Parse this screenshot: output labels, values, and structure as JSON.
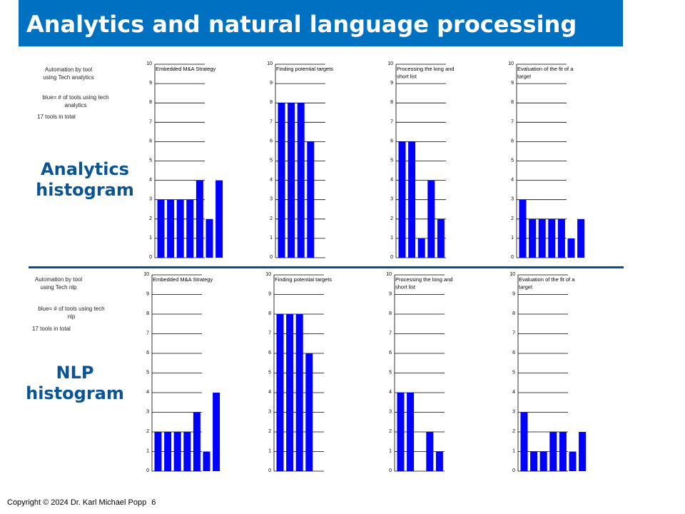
{
  "title": "Analytics and natural language processing",
  "sections": [
    {
      "note_line1": "Automation by tool",
      "note_line2": "using Tech analytics",
      "note_blue1": "blue= # of tools using tech",
      "note_blue2": "analytics",
      "note_total": "17 tools in total",
      "big_label1": "Analytics",
      "big_label2": "histogram"
    },
    {
      "note_line1": "Automation by tool",
      "note_line2": "using Tech nlp",
      "note_blue1": "blue= # of tools using tech",
      "note_blue2": "nlp",
      "note_total": "17 tools in total",
      "big_label1": "NLP",
      "big_label2": "histogram"
    }
  ],
  "footer": {
    "copyright": "Copyright © 2024 Dr. Karl Michael Popp",
    "page_number": "6"
  },
  "chart_data": [
    {
      "type": "bar",
      "group": "Analytics",
      "title": [
        "Embedded M&A Strategy"
      ],
      "ylim": [
        0,
        10
      ],
      "yticks": [
        "0",
        "1",
        "2",
        "3",
        "4",
        "5",
        "6",
        "7",
        "8",
        "9",
        "10"
      ],
      "values": [
        3,
        3,
        3,
        3,
        4,
        2,
        4
      ],
      "color": "#0000ff"
    },
    {
      "type": "bar",
      "group": "Analytics",
      "title": [
        "Finding potential targets"
      ],
      "ylim": [
        0,
        10
      ],
      "yticks": [
        "0",
        "1",
        "2",
        "3",
        "4",
        "5",
        "6",
        "7",
        "8",
        "9",
        "10"
      ],
      "values": [
        8,
        8,
        8,
        6
      ],
      "color": "#0000ff"
    },
    {
      "type": "bar",
      "group": "Analytics",
      "title": [
        "Processing the long and",
        "short list"
      ],
      "ylim": [
        0,
        10
      ],
      "yticks": [
        "0",
        "1",
        "2",
        "3",
        "4",
        "5",
        "6",
        "7",
        "8",
        "9",
        "10"
      ],
      "values": [
        6,
        6,
        1,
        4,
        2
      ],
      "color": "#0000ff"
    },
    {
      "type": "bar",
      "group": "Analytics",
      "title": [
        "Evaluation of the fit of a",
        "target"
      ],
      "ylim": [
        0,
        10
      ],
      "yticks": [
        "0",
        "1",
        "2",
        "3",
        "4",
        "5",
        "6",
        "7",
        "8",
        "9",
        "10"
      ],
      "values": [
        3,
        2,
        2,
        2,
        2,
        1,
        2
      ],
      "color": "#0000ff"
    },
    {
      "type": "bar",
      "group": "NLP",
      "title": [
        "Embedded M&A Strategy"
      ],
      "ylim": [
        0,
        10
      ],
      "yticks": [
        "0",
        "1",
        "2",
        "3",
        "4",
        "5",
        "6",
        "7",
        "8",
        "9",
        "10"
      ],
      "values": [
        2,
        2,
        2,
        2,
        3,
        1,
        4
      ],
      "color": "#0000ff"
    },
    {
      "type": "bar",
      "group": "NLP",
      "title": [
        "Finding potential targets"
      ],
      "ylim": [
        0,
        10
      ],
      "yticks": [
        "0",
        "1",
        "2",
        "3",
        "4",
        "5",
        "6",
        "7",
        "8",
        "9",
        "10"
      ],
      "values": [
        8,
        8,
        8,
        6
      ],
      "color": "#0000ff"
    },
    {
      "type": "bar",
      "group": "NLP",
      "title": [
        "Processing the long and",
        "short list"
      ],
      "ylim": [
        0,
        10
      ],
      "yticks": [
        "0",
        "1",
        "2",
        "3",
        "4",
        "5",
        "6",
        "7",
        "8",
        "9",
        "10"
      ],
      "values": [
        4,
        4,
        0,
        2,
        1
      ],
      "color": "#0000ff"
    },
    {
      "type": "bar",
      "group": "NLP",
      "title": [
        "Evaluation of the fit of a",
        "target"
      ],
      "ylim": [
        0,
        10
      ],
      "yticks": [
        "0",
        "1",
        "2",
        "3",
        "4",
        "5",
        "6",
        "7",
        "8",
        "9",
        "10"
      ],
      "values": [
        3,
        1,
        1,
        2,
        2,
        1,
        2
      ],
      "color": "#0000ff"
    }
  ]
}
